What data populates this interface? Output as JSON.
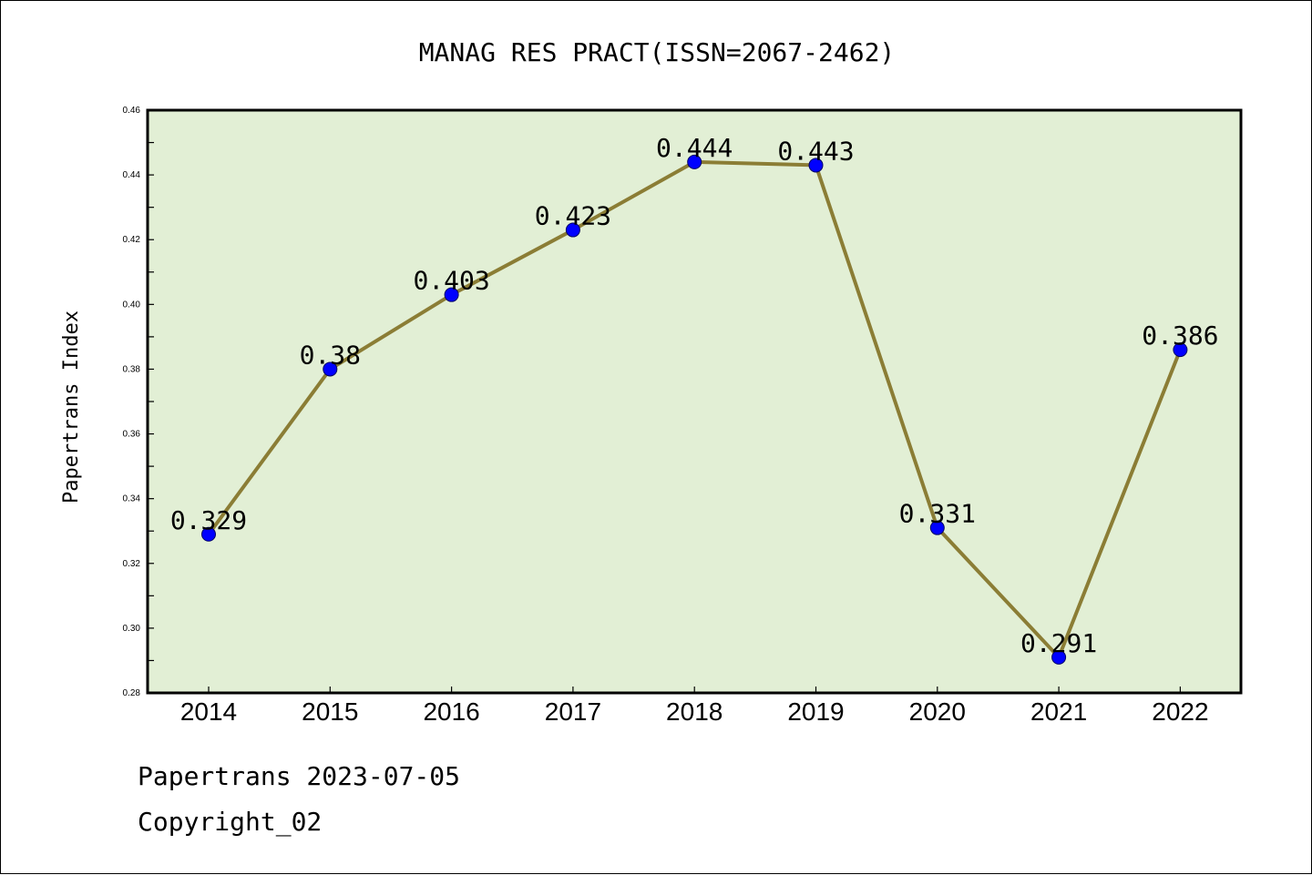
{
  "chart_data": {
    "type": "line",
    "title": "MANAG RES PRACT(ISSN=2067-2462)",
    "xlabel": "",
    "ylabel": "Papertrans Index",
    "categories": [
      "2014",
      "2015",
      "2016",
      "2017",
      "2018",
      "2019",
      "2020",
      "2021",
      "2022"
    ],
    "series": [
      {
        "values": [
          0.329,
          0.38,
          0.403,
          0.423,
          0.444,
          0.443,
          0.331,
          0.291,
          0.386
        ],
        "data_labels": [
          "0.329",
          "0.38",
          "0.403",
          "0.423",
          "0.444",
          "0.443",
          "0.331",
          "0.291",
          "0.386"
        ]
      }
    ],
    "ylim": [
      0.28,
      0.46
    ],
    "yticks": [
      0.28,
      0.3,
      0.32,
      0.34,
      0.36,
      0.38,
      0.4,
      0.42,
      0.44,
      0.46
    ],
    "ytick_labels": [
      "0.28",
      "0.30",
      "0.32",
      "0.34",
      "0.36",
      "0.38",
      "0.40",
      "0.42",
      "0.44",
      "0.46"
    ],
    "grid": false,
    "legend": "none",
    "colors": {
      "plot_background": "#e2efd5",
      "line": "#8b7d35",
      "marker": "#0000ff",
      "axis": "#000000"
    }
  },
  "footer": {
    "source": "Papertrans 2023-07-05",
    "copyright": "Copyright_02"
  }
}
